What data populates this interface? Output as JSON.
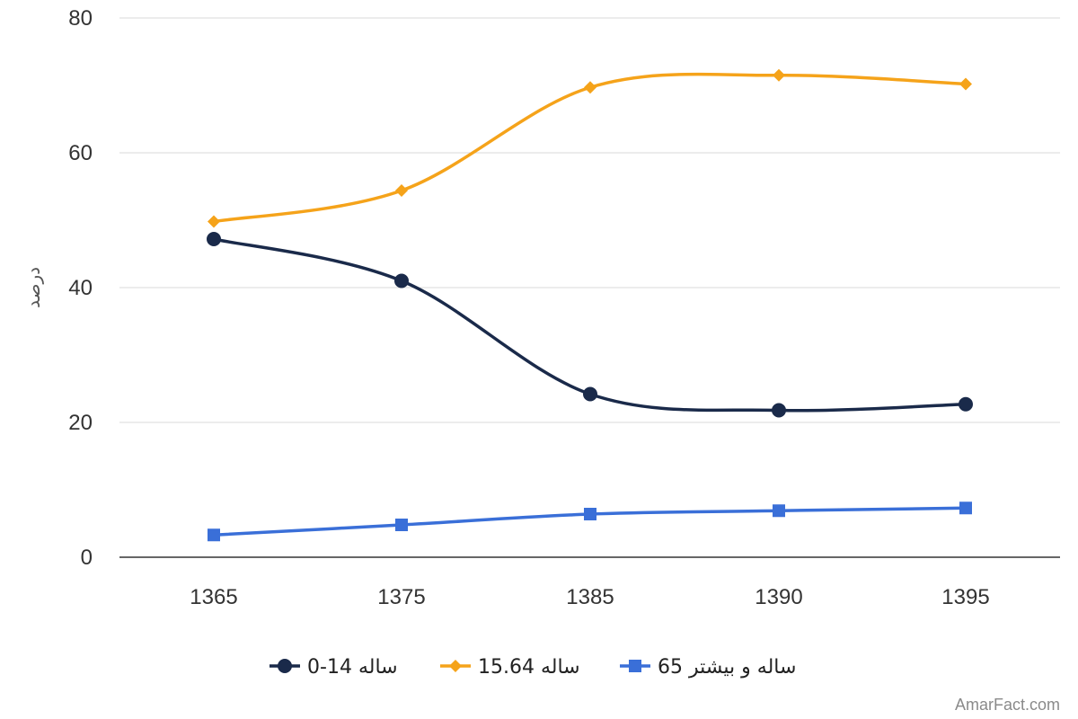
{
  "chart_data": {
    "type": "line",
    "ylabel": "درصد",
    "xlabel": "",
    "ylim": [
      0,
      80
    ],
    "yticks": [
      0,
      20,
      40,
      60,
      80
    ],
    "categories": [
      "1365",
      "1375",
      "1385",
      "1390",
      "1395"
    ],
    "grid": true,
    "legend_position": "bottom",
    "series": [
      {
        "name": "ساله 14-0",
        "color": "#1a2a4a",
        "marker": "circle",
        "values": [
          47.2,
          41.0,
          24.2,
          21.8,
          22.7
        ]
      },
      {
        "name": "ساله 15.64",
        "color": "#f5a31a",
        "marker": "diamond",
        "values": [
          49.8,
          54.4,
          69.7,
          71.5,
          70.2
        ]
      },
      {
        "name": "ساله و بیشتر 65",
        "color": "#3a6fd8",
        "marker": "square",
        "values": [
          3.3,
          4.8,
          6.4,
          6.9,
          7.3
        ]
      }
    ]
  },
  "watermark": "AmarFact.com"
}
